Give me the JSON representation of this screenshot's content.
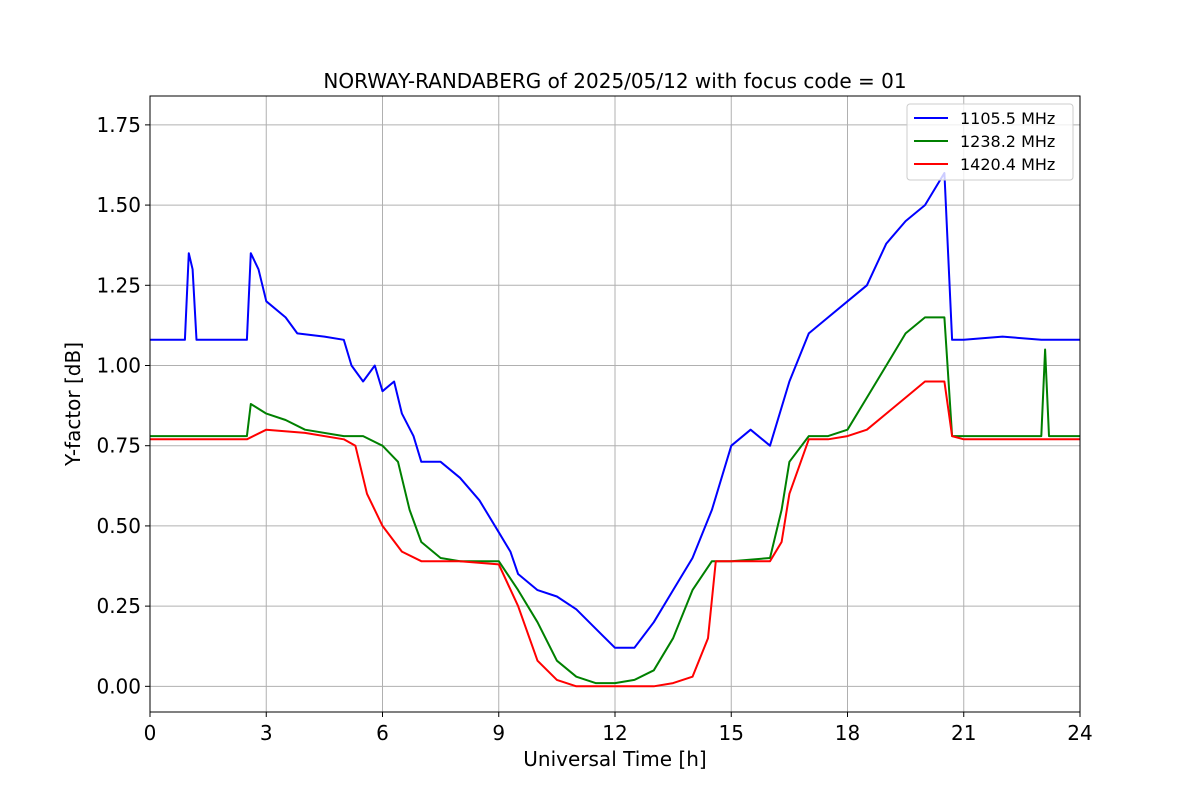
{
  "chart_data": {
    "type": "line",
    "title": "NORWAY-RANDABERG of 2025/05/12 with focus code = 01",
    "xlabel": "Universal Time [h]",
    "ylabel": "Y-factor [dB]",
    "xlim": [
      0,
      24
    ],
    "ylim": [
      -0.08,
      1.84
    ],
    "xticks": [
      "0",
      "3",
      "6",
      "9",
      "12",
      "15",
      "18",
      "21",
      "24"
    ],
    "yticks": [
      "0.00",
      "0.25",
      "0.50",
      "0.75",
      "1.00",
      "1.25",
      "1.50",
      "1.75"
    ],
    "grid": true,
    "legend_position": "top-right",
    "series": [
      {
        "name": "1105.5 MHz",
        "color": "#0000ff",
        "x": [
          0,
          0.9,
          1.0,
          1.1,
          1.2,
          2.5,
          2.6,
          2.8,
          3.0,
          3.5,
          3.8,
          4.5,
          5.0,
          5.2,
          5.5,
          5.8,
          6.0,
          6.3,
          6.5,
          6.8,
          7.0,
          7.5,
          8.0,
          8.5,
          9.0,
          9.3,
          9.5,
          10.0,
          10.5,
          11.0,
          11.5,
          12.0,
          12.5,
          13.0,
          13.5,
          14.0,
          14.5,
          15.0,
          15.5,
          16.0,
          16.5,
          17.0,
          17.5,
          18.0,
          18.5,
          19.0,
          19.5,
          20.0,
          20.5,
          20.7,
          21.0,
          22.0,
          23.0,
          24.0
        ],
        "y": [
          1.08,
          1.08,
          1.35,
          1.3,
          1.08,
          1.08,
          1.35,
          1.3,
          1.2,
          1.15,
          1.1,
          1.09,
          1.08,
          1.0,
          0.95,
          1.0,
          0.92,
          0.95,
          0.85,
          0.78,
          0.7,
          0.7,
          0.65,
          0.58,
          0.48,
          0.42,
          0.35,
          0.3,
          0.28,
          0.24,
          0.18,
          0.12,
          0.12,
          0.2,
          0.3,
          0.4,
          0.55,
          0.75,
          0.8,
          0.75,
          0.95,
          1.1,
          1.15,
          1.2,
          1.25,
          1.38,
          1.45,
          1.5,
          1.6,
          1.08,
          1.08,
          1.09,
          1.08,
          1.08
        ]
      },
      {
        "name": "1238.2 MHz",
        "color": "#008000",
        "x": [
          0,
          2.5,
          2.6,
          3.0,
          3.5,
          4.0,
          5.0,
          5.5,
          6.0,
          6.4,
          6.7,
          7.0,
          7.5,
          8.0,
          8.5,
          9.0,
          9.5,
          10.0,
          10.5,
          11.0,
          11.5,
          12.0,
          12.5,
          13.0,
          13.5,
          14.0,
          14.5,
          15.0,
          16.0,
          16.3,
          16.5,
          17.0,
          17.5,
          18.0,
          18.5,
          19.0,
          19.5,
          20.0,
          20.5,
          20.7,
          21.0,
          22.0,
          23.0,
          23.1,
          23.2,
          24.0
        ],
        "y": [
          0.78,
          0.78,
          0.88,
          0.85,
          0.83,
          0.8,
          0.78,
          0.78,
          0.75,
          0.7,
          0.55,
          0.45,
          0.4,
          0.39,
          0.39,
          0.39,
          0.3,
          0.2,
          0.08,
          0.03,
          0.01,
          0.01,
          0.02,
          0.05,
          0.15,
          0.3,
          0.39,
          0.39,
          0.4,
          0.55,
          0.7,
          0.78,
          0.78,
          0.8,
          0.9,
          1.0,
          1.1,
          1.15,
          1.15,
          0.78,
          0.78,
          0.78,
          0.78,
          1.05,
          0.78,
          0.78
        ]
      },
      {
        "name": "1420.4 MHz",
        "color": "#ff0000",
        "x": [
          0,
          2.5,
          3.0,
          4.0,
          5.0,
          5.3,
          5.6,
          6.0,
          6.5,
          7.0,
          8.0,
          9.0,
          9.5,
          10.0,
          10.5,
          11.0,
          12.0,
          13.0,
          13.5,
          14.0,
          14.4,
          14.6,
          15.0,
          16.0,
          16.3,
          16.5,
          17.0,
          17.5,
          18.0,
          18.5,
          19.0,
          19.5,
          20.0,
          20.5,
          20.7,
          21.0,
          22.0,
          23.0,
          24.0
        ],
        "y": [
          0.77,
          0.77,
          0.8,
          0.79,
          0.77,
          0.75,
          0.6,
          0.5,
          0.42,
          0.39,
          0.39,
          0.38,
          0.25,
          0.08,
          0.02,
          0.0,
          0.0,
          0.0,
          0.01,
          0.03,
          0.15,
          0.39,
          0.39,
          0.39,
          0.45,
          0.6,
          0.77,
          0.77,
          0.78,
          0.8,
          0.85,
          0.9,
          0.95,
          0.95,
          0.78,
          0.77,
          0.77,
          0.77,
          0.77
        ]
      }
    ]
  }
}
